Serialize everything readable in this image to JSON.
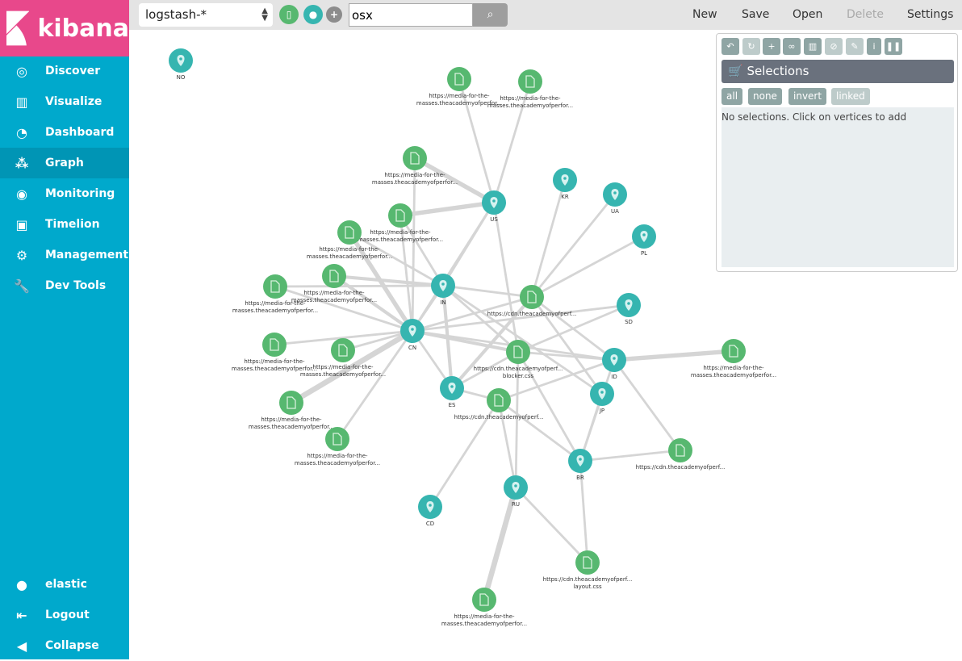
{
  "brand": {
    "name": "kibana",
    "color": "#e8488b"
  },
  "sidebar": {
    "items": [
      {
        "label": "Discover",
        "icon": "compass-icon",
        "glyph": "◎"
      },
      {
        "label": "Visualize",
        "icon": "bar-chart-icon",
        "glyph": "▥"
      },
      {
        "label": "Dashboard",
        "icon": "dashboard-icon",
        "glyph": "◔"
      },
      {
        "label": "Graph",
        "icon": "graph-icon",
        "glyph": "⁂",
        "active": true
      },
      {
        "label": "Monitoring",
        "icon": "eye-icon",
        "glyph": "◉"
      },
      {
        "label": "Timelion",
        "icon": "timelion-icon",
        "glyph": "▣"
      },
      {
        "label": "Management",
        "icon": "gear-icon",
        "glyph": "⚙"
      },
      {
        "label": "Dev Tools",
        "icon": "wrench-icon",
        "glyph": "🔧"
      }
    ],
    "bottom": [
      {
        "label": "elastic",
        "icon": "user-icon",
        "glyph": "●"
      },
      {
        "label": "Logout",
        "icon": "logout-icon",
        "glyph": "⇤"
      },
      {
        "label": "Collapse",
        "icon": "collapse-icon",
        "glyph": "◀"
      }
    ]
  },
  "toolbar": {
    "index": "logstash-*",
    "search_value": "osx",
    "new": "New",
    "save": "Save",
    "open": "Open",
    "delete": "Delete",
    "settings": "Settings"
  },
  "panel": {
    "title": "Selections",
    "buttons": {
      "all": "all",
      "none": "none",
      "invert": "invert",
      "linked": "linked"
    },
    "empty": "No selections. Click on vertices to add"
  },
  "colors": {
    "doc": "#57b870",
    "geo": "#36b5b0",
    "edge": "#d5d5d5"
  },
  "graph": {
    "nodes": [
      {
        "id": "NO",
        "type": "geo",
        "label": [
          "NO"
        ]
      },
      {
        "id": "d1",
        "type": "doc",
        "label": [
          "https://media-for-the-",
          "masses.theacademyofperfor..."
        ]
      },
      {
        "id": "d2",
        "type": "doc",
        "label": [
          "https://media-for-the-",
          "masses.theacademyofperfor..."
        ]
      },
      {
        "id": "d3",
        "type": "doc",
        "label": [
          "https://media-for-the-",
          "masses.theacademyofperfor..."
        ]
      },
      {
        "id": "US",
        "type": "geo",
        "label": [
          "US"
        ]
      },
      {
        "id": "KR",
        "type": "geo",
        "label": [
          "KR"
        ]
      },
      {
        "id": "UA",
        "type": "geo",
        "label": [
          "UA"
        ]
      },
      {
        "id": "d4",
        "type": "doc",
        "label": [
          "https://media-for-the-",
          "masses.theacademyofperfor..."
        ]
      },
      {
        "id": "PL",
        "type": "geo",
        "label": [
          "PL"
        ]
      },
      {
        "id": "d5",
        "type": "doc",
        "label": [
          "https://media-for-the-",
          "masses.theacademyofperfor..."
        ]
      },
      {
        "id": "d6",
        "type": "doc",
        "label": [
          "https://media-for-the-",
          "masses.theacademyofperfor..."
        ]
      },
      {
        "id": "IN",
        "type": "geo",
        "label": [
          "IN"
        ]
      },
      {
        "id": "d7",
        "type": "doc",
        "label": [
          "https://media-for-the-",
          "masses.theacademyofperfor..."
        ]
      },
      {
        "id": "c1",
        "type": "doc",
        "label": [
          "https://cdn.theacademyofperf..."
        ]
      },
      {
        "id": "SD",
        "type": "geo",
        "label": [
          "SD"
        ]
      },
      {
        "id": "CN",
        "type": "geo",
        "label": [
          "CN"
        ]
      },
      {
        "id": "d8",
        "type": "doc",
        "label": [
          "https://media-for-the-",
          "masses.theacademyofperfor..."
        ]
      },
      {
        "id": "d9",
        "type": "doc",
        "label": [
          "https://media-for-the-",
          "masses.theacademyofperfor..."
        ]
      },
      {
        "id": "c2",
        "type": "doc",
        "label": [
          "https://cdn.theacademyofperf...",
          "blocker.css"
        ]
      },
      {
        "id": "ID",
        "type": "geo",
        "label": [
          "ID"
        ]
      },
      {
        "id": "d10",
        "type": "doc",
        "label": [
          "https://media-for-the-",
          "masses.theacademyofperfor..."
        ]
      },
      {
        "id": "ES",
        "type": "geo",
        "label": [
          "ES"
        ]
      },
      {
        "id": "JP",
        "type": "geo",
        "label": [
          "JP"
        ]
      },
      {
        "id": "c3",
        "type": "doc",
        "label": [
          "https://cdn.theacademyofperf..."
        ]
      },
      {
        "id": "d11",
        "type": "doc",
        "label": [
          "https://media-for-the-",
          "masses.theacademyofperfor..."
        ]
      },
      {
        "id": "d12",
        "type": "doc",
        "label": [
          "https://media-for-the-",
          "masses.theacademyofperfor..."
        ]
      },
      {
        "id": "c4",
        "type": "doc",
        "label": [
          "https://cdn.theacademyofperf..."
        ]
      },
      {
        "id": "BR",
        "type": "geo",
        "label": [
          "BR"
        ]
      },
      {
        "id": "RU",
        "type": "geo",
        "label": [
          "RU"
        ]
      },
      {
        "id": "CD",
        "type": "geo",
        "label": [
          "CD"
        ]
      },
      {
        "id": "c5",
        "type": "doc",
        "label": [
          "https://cdn.theacademyofperf...",
          "layout.css"
        ]
      },
      {
        "id": "d13",
        "type": "doc",
        "label": [
          "https://media-for-the-",
          "masses.theacademyofperfor..."
        ]
      }
    ],
    "edges": [
      [
        "d1",
        "US",
        1
      ],
      [
        "d2",
        "US",
        1
      ],
      [
        "d3",
        "US",
        3
      ],
      [
        "d4",
        "US",
        3
      ],
      [
        "US",
        "IN",
        1
      ],
      [
        "US",
        "c2",
        1
      ],
      [
        "US",
        "CN",
        1
      ],
      [
        "KR",
        "c1",
        1
      ],
      [
        "UA",
        "c1",
        1
      ],
      [
        "PL",
        "c1",
        1
      ],
      [
        "c1",
        "IN",
        1
      ],
      [
        "c1",
        "CN",
        1
      ],
      [
        "c1",
        "ES",
        2
      ],
      [
        "c1",
        "JP",
        1
      ],
      [
        "c1",
        "ID",
        1
      ],
      [
        "d5",
        "CN",
        3
      ],
      [
        "d5",
        "IN",
        1
      ],
      [
        "d6",
        "CN",
        2
      ],
      [
        "d6",
        "IN",
        2
      ],
      [
        "d7",
        "CN",
        1
      ],
      [
        "d7",
        "IN",
        1
      ],
      [
        "d4",
        "IN",
        1
      ],
      [
        "d4",
        "CN",
        1
      ],
      [
        "d3",
        "CN",
        1
      ],
      [
        "IN",
        "CN",
        1
      ],
      [
        "IN",
        "c2",
        1
      ],
      [
        "IN",
        "JP",
        1
      ],
      [
        "IN",
        "ES",
        2
      ],
      [
        "SD",
        "CN",
        1
      ],
      [
        "SD",
        "c2",
        1
      ],
      [
        "CN",
        "c2",
        2
      ],
      [
        "CN",
        "ID",
        1
      ],
      [
        "CN",
        "d8",
        1
      ],
      [
        "CN",
        "d9",
        1
      ],
      [
        "CN",
        "d11",
        4
      ],
      [
        "CN",
        "d12",
        1
      ],
      [
        "CN",
        "ES",
        1
      ],
      [
        "c2",
        "ID",
        1
      ],
      [
        "c2",
        "ES",
        1
      ],
      [
        "c2",
        "BR",
        1
      ],
      [
        "c2",
        "RU",
        1
      ],
      [
        "ID",
        "d10",
        3
      ],
      [
        "ID",
        "c3",
        1
      ],
      [
        "ID",
        "c4",
        1
      ],
      [
        "ID",
        "BR",
        1
      ],
      [
        "JP",
        "BR",
        1
      ],
      [
        "cdn",
        "",
        0
      ],
      [
        "c3",
        "ES",
        1
      ],
      [
        "c3",
        "RU",
        1
      ],
      [
        "c3",
        "BR",
        1
      ],
      [
        "c3",
        "CD",
        1
      ],
      [
        "RU",
        "c5",
        1
      ],
      [
        "RU",
        "d13",
        4
      ],
      [
        "BR",
        "c4",
        1
      ],
      [
        "BR",
        "c5",
        1
      ]
    ]
  }
}
